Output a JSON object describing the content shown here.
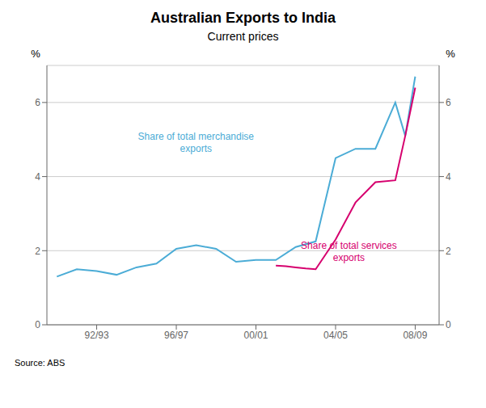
{
  "chart_data": {
    "type": "line",
    "title": "Australian Exports to India",
    "subtitle": "Current prices",
    "source": "Source: ABS",
    "y_label": "%",
    "y2_label": "%",
    "xlim": [
      1989.5,
      2009.2
    ],
    "xticks": [
      {
        "value": 1992,
        "label": "92/93"
      },
      {
        "value": 1996,
        "label": "96/97"
      },
      {
        "value": 2000,
        "label": "00/01"
      },
      {
        "value": 2004,
        "label": "04/05"
      },
      {
        "value": 2008,
        "label": "08/09"
      }
    ],
    "ylim": [
      0,
      7
    ],
    "yticks": [
      0,
      2,
      4,
      6
    ],
    "y2lim": [
      0,
      7
    ],
    "y2ticks": [
      0,
      2,
      4,
      6
    ],
    "grid": true,
    "series": [
      {
        "name": "Share of total merchandise\nexports",
        "color": "#4bacd6",
        "x": [
          1990,
          1991,
          1992,
          1993,
          1994,
          1995,
          1996,
          1997,
          1998,
          1999,
          2000,
          2001,
          2002,
          2003,
          2004,
          2005,
          2006,
          2007,
          2007.5,
          2008
        ],
        "values": [
          1.3,
          1.5,
          1.45,
          1.35,
          1.55,
          1.65,
          2.05,
          2.15,
          2.05,
          1.7,
          1.75,
          1.75,
          2.1,
          2.25,
          4.5,
          4.75,
          4.75,
          6.0,
          5.1,
          6.7
        ]
      },
      {
        "name": "Share of total services\nexports",
        "color": "#d6006e",
        "x": [
          2001,
          2001.5,
          2002,
          2002.5,
          2003,
          2004,
          2005,
          2006,
          2007,
          2007.5,
          2008
        ],
        "values": [
          1.6,
          1.58,
          1.55,
          1.52,
          1.5,
          2.3,
          3.3,
          3.85,
          3.9,
          5.1,
          6.4
        ]
      }
    ]
  }
}
